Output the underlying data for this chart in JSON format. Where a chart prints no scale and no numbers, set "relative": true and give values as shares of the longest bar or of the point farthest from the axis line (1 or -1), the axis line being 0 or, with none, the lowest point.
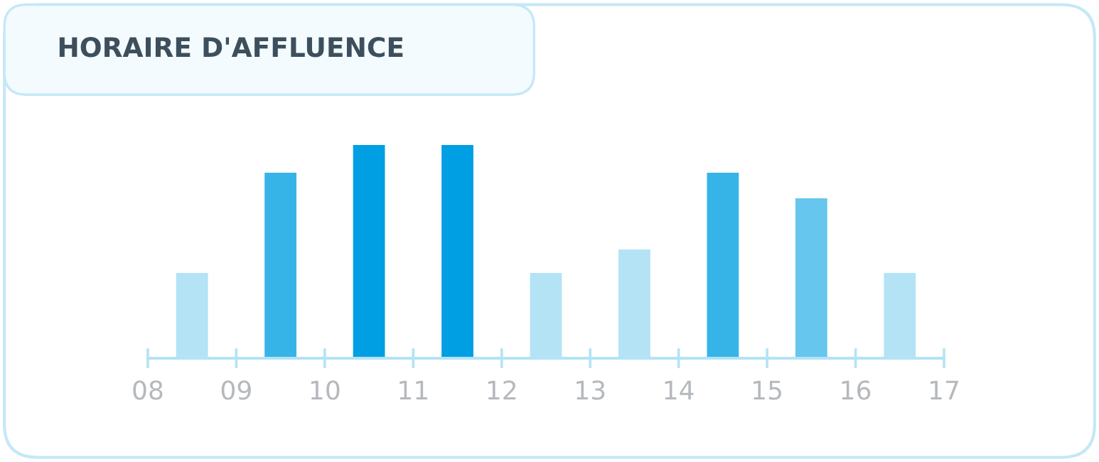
{
  "chart_data": {
    "type": "bar",
    "title": "HORAIRE D'AFFLUENCE",
    "relative": true,
    "x": [
      8.5,
      9.5,
      10.5,
      11.5,
      12.5,
      13.5,
      14.5,
      15.5,
      16.5
    ],
    "values": [
      0.4,
      0.87,
      1,
      1,
      0.4,
      0.51,
      0.87,
      0.75,
      0.4
    ],
    "colors": [
      "#b3e3f5",
      "#36b4e8",
      "#009fe3",
      "#009fe3",
      "#b3e3f5",
      "#b3e3f5",
      "#36b4e8",
      "#66c6ee",
      "#b3e3f5"
    ],
    "xlim": [
      8,
      17
    ],
    "xticks": [
      {
        "value": 8,
        "label": "08"
      },
      {
        "value": 9,
        "label": "09"
      },
      10,
      11,
      12,
      13,
      14,
      15,
      16,
      17
    ],
    "grid": false,
    "legend": false
  }
}
